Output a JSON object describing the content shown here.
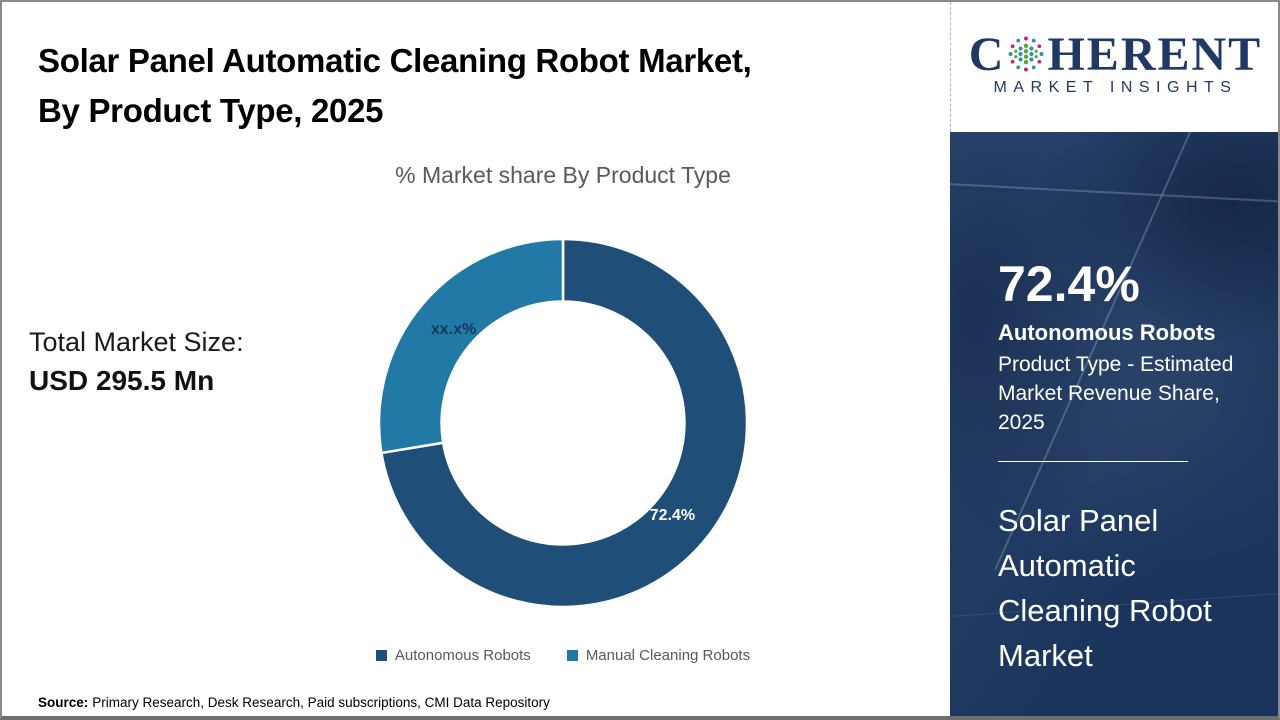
{
  "page": {
    "title_line1": "Solar Panel Automatic Cleaning Robot Market,",
    "title_line2": "By Product Type, 2025",
    "source_label": "Source:",
    "source_text": "Primary Research, Desk Research, Paid subscriptions, CMI Data Repository"
  },
  "logo": {
    "word_c": "C",
    "word_rest": "HERENT",
    "subtitle": "MARKET INSIGHTS",
    "brand_navy": "#1f3864",
    "globe_green": "#56a539",
    "globe_teal": "#2b93a8",
    "globe_magenta": "#c2267e"
  },
  "left_panel": {
    "total_label": "Total Market Size:",
    "total_value": "USD 295.5 Mn"
  },
  "chart_data": {
    "type": "pie",
    "donut": true,
    "title": "% Market share By Product Type",
    "categories": [
      "Autonomous Robots",
      "Manual Cleaning Robots"
    ],
    "values": [
      72.4,
      27.6
    ],
    "slice_labels": [
      "72.4%",
      "xx.x%"
    ],
    "colors": [
      "#1f4e79",
      "#2279a5"
    ],
    "label_colors": [
      "#ffffff",
      "#17375e"
    ],
    "inner_radius_ratio": 0.66,
    "start_angle_deg": 0,
    "direction": "clockwise",
    "legend_position": "bottom"
  },
  "sidebar": {
    "stat_value": "72.4%",
    "stat_title": "Autonomous Robots",
    "stat_desc": "Product Type - Estimated Market Revenue Share, 2025",
    "market_name": "Solar Panel Automatic Cleaning Robot Market",
    "panel_navy": "#1e3a66"
  }
}
